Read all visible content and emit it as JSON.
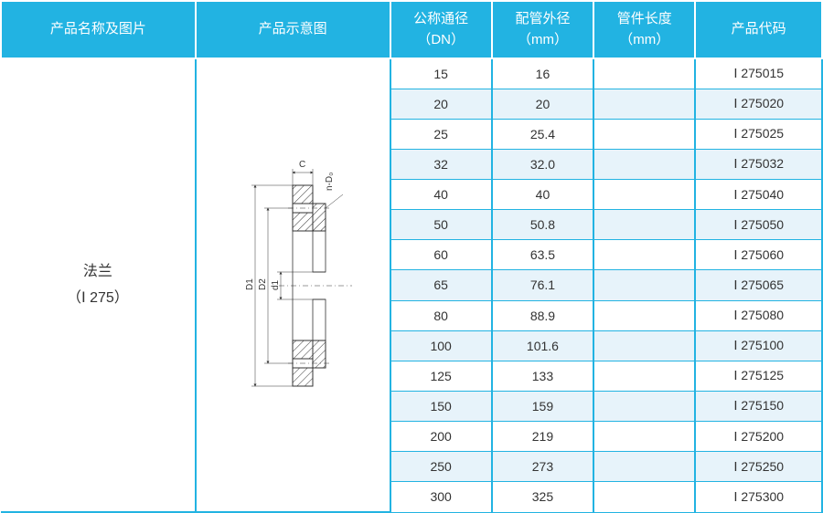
{
  "headers": {
    "name": "产品名称及图片",
    "diagram": "产品示意图",
    "dn": "公称通径<br>（DN）",
    "od": "配管外径<br>（mm）",
    "len": "管件长度<br>（mm）",
    "code": "产品代码"
  },
  "product": {
    "name_line1": "法兰",
    "name_line2": "（Ⅰ 275）"
  },
  "rows": [
    {
      "dn": "15",
      "od": "16",
      "len": "",
      "code": "Ⅰ 275015"
    },
    {
      "dn": "20",
      "od": "20",
      "len": "",
      "code": "Ⅰ 275020"
    },
    {
      "dn": "25",
      "od": "25.4",
      "len": "",
      "code": "Ⅰ 275025"
    },
    {
      "dn": "32",
      "od": "32.0",
      "len": "",
      "code": "Ⅰ 275032"
    },
    {
      "dn": "40",
      "od": "40",
      "len": "",
      "code": "Ⅰ 275040"
    },
    {
      "dn": "50",
      "od": "50.8",
      "len": "",
      "code": "Ⅰ 275050"
    },
    {
      "dn": "60",
      "od": "63.5",
      "len": "",
      "code": "Ⅰ 275060"
    },
    {
      "dn": "65",
      "od": "76.1",
      "len": "",
      "code": "Ⅰ 275065"
    },
    {
      "dn": "80",
      "od": "88.9",
      "len": "",
      "code": "Ⅰ 275080"
    },
    {
      "dn": "100",
      "od": "101.6",
      "len": "",
      "code": "Ⅰ 275100"
    },
    {
      "dn": "125",
      "od": "133",
      "len": "",
      "code": "Ⅰ 275125"
    },
    {
      "dn": "150",
      "od": "159",
      "len": "",
      "code": "Ⅰ 275150"
    },
    {
      "dn": "200",
      "od": "219",
      "len": "",
      "code": "Ⅰ 275200"
    },
    {
      "dn": "250",
      "od": "273",
      "len": "",
      "code": "Ⅰ 275250"
    },
    {
      "dn": "300",
      "od": "325",
      "len": "",
      "code": "Ⅰ 275300"
    }
  ],
  "diagram": {
    "labels": {
      "C": "C",
      "nD0": "n-D₀",
      "D1": "D1",
      "D2": "D2",
      "d1": "d1"
    }
  },
  "colors": {
    "header_bg": "#22b3e2",
    "header_fg": "#ffffff",
    "row_alt_bg": "#e7f3fa",
    "row_bg": "#ffffff",
    "border": "#22b3e2",
    "text": "#333333"
  }
}
